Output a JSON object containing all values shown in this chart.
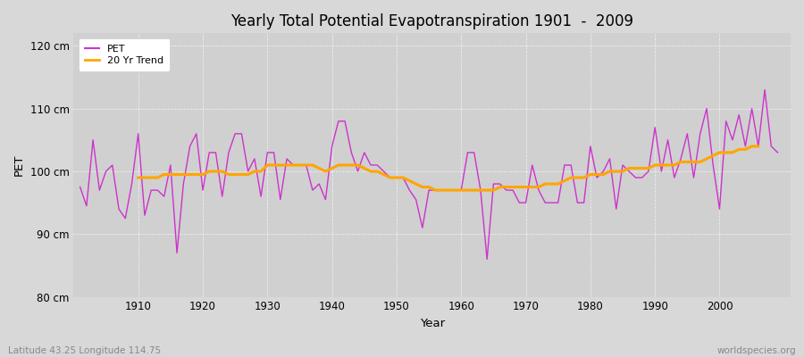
{
  "title": "Yearly Total Potential Evapotranspiration 1901  -  2009",
  "xlabel": "Year",
  "ylabel": "PET",
  "subtitle_left": "Latitude 43.25 Longitude 114.75",
  "subtitle_right": "worldspecies.org",
  "ylim": [
    80,
    122
  ],
  "yticks": [
    80,
    90,
    100,
    110,
    120
  ],
  "ytick_labels": [
    "80 cm",
    "90 cm",
    "100 cm",
    "110 cm",
    "120 cm"
  ],
  "pet_color": "#cc33cc",
  "trend_color": "#ffa500",
  "fig_bg_color": "#d8d8d8",
  "plot_bg_color": "#d0d0d0",
  "grid_color": "#ffffff",
  "years": [
    1901,
    1902,
    1903,
    1904,
    1905,
    1906,
    1907,
    1908,
    1909,
    1910,
    1911,
    1912,
    1913,
    1914,
    1915,
    1916,
    1917,
    1918,
    1919,
    1920,
    1921,
    1922,
    1923,
    1924,
    1925,
    1926,
    1927,
    1928,
    1929,
    1930,
    1931,
    1932,
    1933,
    1934,
    1935,
    1936,
    1937,
    1938,
    1939,
    1940,
    1941,
    1942,
    1943,
    1944,
    1945,
    1946,
    1947,
    1948,
    1949,
    1950,
    1951,
    1952,
    1953,
    1954,
    1955,
    1956,
    1957,
    1958,
    1959,
    1960,
    1961,
    1962,
    1963,
    1964,
    1965,
    1966,
    1967,
    1968,
    1969,
    1970,
    1971,
    1972,
    1973,
    1974,
    1975,
    1976,
    1977,
    1978,
    1979,
    1980,
    1981,
    1982,
    1983,
    1984,
    1985,
    1986,
    1987,
    1988,
    1989,
    1990,
    1991,
    1992,
    1993,
    1994,
    1995,
    1996,
    1997,
    1998,
    1999,
    2000,
    2001,
    2002,
    2003,
    2004,
    2005,
    2006,
    2007,
    2008,
    2009
  ],
  "pet_values": [
    97.5,
    94.5,
    105,
    97,
    100,
    101,
    94,
    92.5,
    98,
    106,
    93,
    97,
    97,
    96,
    101,
    87,
    98,
    104,
    106,
    97,
    103,
    103,
    96,
    103,
    106,
    106,
    100,
    102,
    96,
    103,
    103,
    95.5,
    102,
    101,
    101,
    101,
    97,
    98,
    95.5,
    104,
    108,
    108,
    103,
    100,
    103,
    101,
    101,
    100,
    99,
    99,
    99,
    97,
    95.5,
    91,
    97,
    97,
    97,
    97,
    97,
    97,
    103,
    103,
    97,
    86,
    98,
    98,
    97,
    97,
    95,
    95,
    101,
    97,
    95,
    95,
    95,
    101,
    101,
    95,
    95,
    104,
    99,
    100,
    102,
    94,
    101,
    100,
    99,
    99,
    100,
    107,
    100,
    105,
    99,
    102,
    106,
    99,
    106,
    110,
    101,
    94,
    108,
    105,
    109,
    104,
    110,
    104,
    113,
    104,
    103
  ],
  "trend_values": [
    null,
    null,
    null,
    null,
    null,
    null,
    null,
    null,
    null,
    99,
    99,
    99,
    99,
    99.5,
    99.5,
    99.5,
    99.5,
    99.5,
    99.5,
    99.5,
    100,
    100,
    100,
    99.5,
    99.5,
    99.5,
    99.5,
    100,
    100,
    101,
    101,
    101,
    101,
    101,
    101,
    101,
    101,
    100.5,
    100,
    100.5,
    101,
    101,
    101,
    101,
    100.5,
    100,
    100,
    99.5,
    99,
    99,
    99,
    98.5,
    98,
    97.5,
    97.5,
    97,
    97,
    97,
    97,
    97,
    97,
    97,
    97,
    97,
    97,
    97.5,
    97.5,
    97.5,
    97.5,
    97.5,
    97.5,
    97.5,
    98,
    98,
    98,
    98.5,
    99,
    99,
    99,
    99.5,
    99.5,
    99.5,
    100,
    100,
    100,
    100.5,
    100.5,
    100.5,
    100.5,
    101,
    101,
    101,
    101,
    101.5,
    101.5,
    101.5,
    101.5,
    102,
    102.5,
    103,
    103,
    103,
    103.5,
    103.5,
    104,
    104,
    null,
    null,
    null
  ]
}
